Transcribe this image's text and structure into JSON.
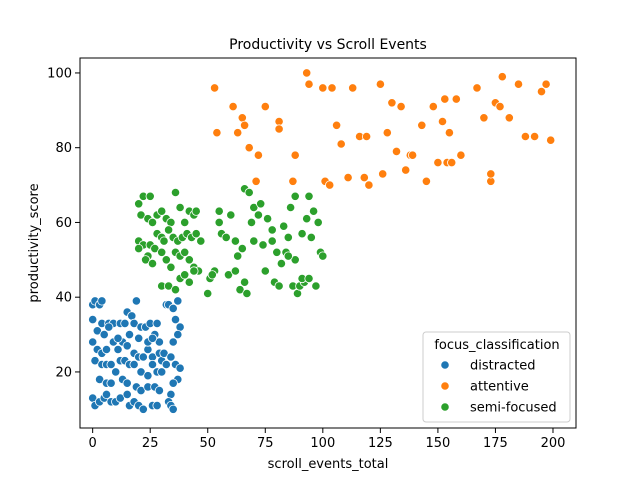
{
  "chart_data": {
    "type": "scatter",
    "title": "Productivity vs Scroll Events",
    "xlabel": "scroll_events_total",
    "ylabel": "productivity_score",
    "xlim": [
      -5.5,
      210
    ],
    "ylim": [
      5,
      104
    ],
    "xticks": [
      0,
      25,
      50,
      75,
      100,
      125,
      150,
      175,
      200
    ],
    "yticks": [
      20,
      40,
      60,
      80,
      100
    ],
    "grid": false,
    "legend": {
      "title": "focus_classification",
      "placement": "lower-right"
    },
    "series": [
      {
        "name": "distracted",
        "color": "#1f77b4",
        "points": [
          [
            0,
            38
          ],
          [
            1,
            39
          ],
          [
            3,
            38
          ],
          [
            4,
            39
          ],
          [
            0,
            34
          ],
          [
            2,
            31
          ],
          [
            5,
            30
          ],
          [
            4,
            33
          ],
          [
            7,
            33
          ],
          [
            9,
            33
          ],
          [
            12,
            33
          ],
          [
            15,
            36
          ],
          [
            14,
            33
          ],
          [
            17,
            35
          ],
          [
            19,
            39
          ],
          [
            18,
            33
          ],
          [
            21,
            32
          ],
          [
            23,
            32
          ],
          [
            25,
            33
          ],
          [
            28,
            33
          ],
          [
            27,
            30
          ],
          [
            29,
            28
          ],
          [
            0,
            28
          ],
          [
            2,
            26
          ],
          [
            4,
            25
          ],
          [
            6,
            26
          ],
          [
            9,
            28
          ],
          [
            11,
            26
          ],
          [
            13,
            28
          ],
          [
            15,
            27
          ],
          [
            18,
            25
          ],
          [
            20,
            24
          ],
          [
            22,
            24
          ],
          [
            24,
            26
          ],
          [
            26,
            24
          ],
          [
            29,
            25
          ],
          [
            30,
            23
          ],
          [
            31,
            25
          ],
          [
            1,
            23
          ],
          [
            4,
            22
          ],
          [
            6,
            22
          ],
          [
            8,
            22
          ],
          [
            10,
            20
          ],
          [
            12,
            23
          ],
          [
            14,
            23
          ],
          [
            16,
            22
          ],
          [
            18,
            22
          ],
          [
            21,
            20
          ],
          [
            24,
            19
          ],
          [
            26,
            22
          ],
          [
            28,
            20
          ],
          [
            30,
            20
          ],
          [
            32,
            22
          ],
          [
            3,
            18
          ],
          [
            6,
            17
          ],
          [
            8,
            17
          ],
          [
            13,
            18
          ],
          [
            15,
            17
          ],
          [
            19,
            16
          ],
          [
            21,
            15
          ],
          [
            24,
            16
          ],
          [
            27,
            16
          ],
          [
            29,
            15
          ],
          [
            0,
            13
          ],
          [
            1,
            11
          ],
          [
            3,
            12
          ],
          [
            5,
            13
          ],
          [
            6,
            14
          ],
          [
            8,
            12
          ],
          [
            10,
            12
          ],
          [
            12,
            13
          ],
          [
            15,
            14
          ],
          [
            16,
            11
          ],
          [
            18,
            12
          ],
          [
            20,
            11
          ],
          [
            22,
            10
          ],
          [
            26,
            11
          ],
          [
            28,
            11
          ],
          [
            32,
            38
          ],
          [
            33,
            38
          ],
          [
            35,
            37
          ],
          [
            37,
            39
          ],
          [
            36,
            34
          ],
          [
            38,
            32
          ],
          [
            37,
            30
          ],
          [
            35,
            28
          ],
          [
            34,
            24
          ],
          [
            36,
            22
          ],
          [
            38,
            21
          ],
          [
            37,
            18
          ],
          [
            35,
            17
          ],
          [
            34,
            14
          ],
          [
            33,
            12
          ],
          [
            34,
            11
          ],
          [
            35,
            10
          ],
          [
            7,
            32
          ],
          [
            11,
            29
          ],
          [
            16,
            30
          ],
          [
            20,
            29
          ],
          [
            24,
            28
          ],
          [
            26,
            29
          ]
        ]
      },
      {
        "name": "attentive",
        "color": "#ff7f0e",
        "points": [
          [
            53,
            96
          ],
          [
            54,
            84
          ],
          [
            61,
            91
          ],
          [
            63,
            84
          ],
          [
            65,
            88
          ],
          [
            66,
            86
          ],
          [
            68,
            80
          ],
          [
            71,
            71
          ],
          [
            72,
            78
          ],
          [
            75,
            91
          ],
          [
            81,
            87
          ],
          [
            81,
            85
          ],
          [
            87,
            71
          ],
          [
            88,
            78
          ],
          [
            93,
            100
          ],
          [
            94,
            97
          ],
          [
            100,
            96
          ],
          [
            101,
            71
          ],
          [
            103,
            70
          ],
          [
            104,
            96
          ],
          [
            106,
            86
          ],
          [
            108,
            81
          ],
          [
            111,
            72
          ],
          [
            113,
            96
          ],
          [
            116,
            83
          ],
          [
            118,
            72
          ],
          [
            119,
            83
          ],
          [
            120,
            70
          ],
          [
            125,
            97
          ],
          [
            126,
            73
          ],
          [
            128,
            84
          ],
          [
            130,
            92
          ],
          [
            132,
            79
          ],
          [
            134,
            91
          ],
          [
            136,
            74
          ],
          [
            138,
            78
          ],
          [
            139,
            78
          ],
          [
            143,
            86
          ],
          [
            145,
            71
          ],
          [
            148,
            91
          ],
          [
            150,
            76
          ],
          [
            152,
            87
          ],
          [
            153,
            93
          ],
          [
            154,
            76
          ],
          [
            155,
            84
          ],
          [
            156,
            76
          ],
          [
            158,
            93
          ],
          [
            160,
            78
          ],
          [
            167,
            96
          ],
          [
            170,
            88
          ],
          [
            173,
            71
          ],
          [
            173,
            73
          ],
          [
            175,
            92
          ],
          [
            177,
            91
          ],
          [
            178,
            99
          ],
          [
            181,
            88
          ],
          [
            185,
            97
          ],
          [
            188,
            83
          ],
          [
            192,
            83
          ],
          [
            195,
            95
          ],
          [
            197,
            97
          ],
          [
            199,
            82
          ]
        ]
      },
      {
        "name": "semi-focused",
        "color": "#2ca02c",
        "points": [
          [
            20,
            65
          ],
          [
            21,
            62
          ],
          [
            22,
            67
          ],
          [
            25,
            67
          ],
          [
            24,
            61
          ],
          [
            26,
            60
          ],
          [
            28,
            62
          ],
          [
            30,
            63
          ],
          [
            32,
            61
          ],
          [
            34,
            60
          ],
          [
            36,
            68
          ],
          [
            38,
            64
          ],
          [
            40,
            60
          ],
          [
            42,
            63
          ],
          [
            44,
            62
          ],
          [
            45,
            63
          ],
          [
            20,
            55
          ],
          [
            22,
            54
          ],
          [
            24,
            51
          ],
          [
            25,
            54
          ],
          [
            27,
            53
          ],
          [
            28,
            57
          ],
          [
            30,
            56
          ],
          [
            31,
            55
          ],
          [
            33,
            58
          ],
          [
            35,
            56
          ],
          [
            37,
            55
          ],
          [
            39,
            56
          ],
          [
            41,
            57
          ],
          [
            43,
            56
          ],
          [
            45,
            57
          ],
          [
            47,
            55
          ],
          [
            20,
            53
          ],
          [
            23,
            50
          ],
          [
            26,
            49
          ],
          [
            30,
            52
          ],
          [
            32,
            50
          ],
          [
            34,
            48
          ],
          [
            36,
            52
          ],
          [
            38,
            51
          ],
          [
            40,
            52
          ],
          [
            42,
            50
          ],
          [
            44,
            48
          ],
          [
            46,
            47
          ],
          [
            30,
            43
          ],
          [
            33,
            43
          ],
          [
            36,
            42
          ],
          [
            38,
            45
          ],
          [
            40,
            46
          ],
          [
            42,
            44
          ],
          [
            44,
            47
          ],
          [
            50,
            41
          ],
          [
            51,
            45
          ],
          [
            53,
            47
          ],
          [
            55,
            60
          ],
          [
            55,
            63
          ],
          [
            56,
            57
          ],
          [
            58,
            56
          ],
          [
            59,
            46
          ],
          [
            60,
            62
          ],
          [
            62,
            55
          ],
          [
            63,
            51
          ],
          [
            64,
            42
          ],
          [
            65,
            53
          ],
          [
            66,
            69
          ],
          [
            67,
            41
          ],
          [
            68,
            68
          ],
          [
            69,
            60
          ],
          [
            70,
            55
          ],
          [
            70,
            64
          ],
          [
            72,
            62
          ],
          [
            73,
            65
          ],
          [
            74,
            54
          ],
          [
            75,
            47
          ],
          [
            76,
            61
          ],
          [
            78,
            58
          ],
          [
            79,
            44
          ],
          [
            80,
            52
          ],
          [
            81,
            43
          ],
          [
            82,
            49
          ],
          [
            83,
            59
          ],
          [
            84,
            52
          ],
          [
            85,
            56
          ],
          [
            86,
            64
          ],
          [
            87,
            43
          ],
          [
            88,
            50
          ],
          [
            88,
            67
          ],
          [
            89,
            41
          ],
          [
            90,
            43
          ],
          [
            91,
            57
          ],
          [
            92,
            44
          ],
          [
            93,
            61
          ],
          [
            94,
            67
          ],
          [
            95,
            56
          ],
          [
            96,
            63
          ],
          [
            97,
            43
          ],
          [
            98,
            60
          ],
          [
            99,
            52
          ],
          [
            100,
            51
          ],
          [
            91,
            45
          ],
          [
            94,
            45
          ],
          [
            85,
            51
          ],
          [
            78,
            55
          ],
          [
            66,
            44
          ],
          [
            62,
            47
          ],
          [
            52,
            46
          ]
        ]
      }
    ]
  }
}
